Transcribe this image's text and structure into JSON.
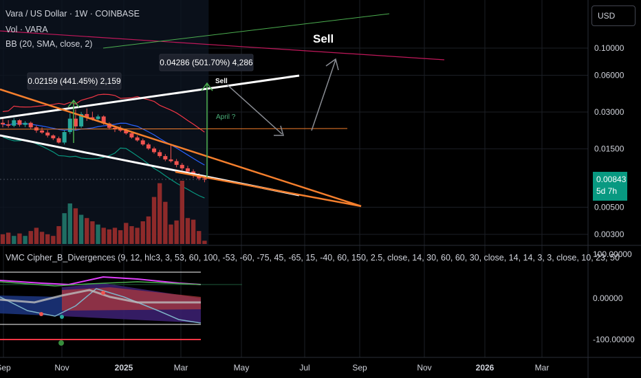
{
  "header": {
    "title": "Vara / US Dollar · 1W · COINBASE",
    "volume": "Vol · VARA",
    "bb": "BB (20, SMA, close, 2)",
    "currency": "USD"
  },
  "last_price": {
    "value": "0.00843",
    "countdown": "5d 7h"
  },
  "oscillator": {
    "label": "VMC Cipher_B_Divergences (9, 12, hlc3, 3, 53, 60, 100, -53, -60, -75, 45, -65, 15, -40, 60, 150, 2.5, close, 14, 30, 60, 60, 30, close, 14, 14, 3, 3, close, 10, 23, 50",
    "ticks": [
      "100.00000",
      "0.00000",
      "-100.00000"
    ]
  },
  "annotations": {
    "sell_big": "Sell",
    "sell_small": "Sell",
    "april": "April ?",
    "measure1": "0.02159 (441.45%) 2,159",
    "measure2": "0.04286 (501.70%) 4,286"
  },
  "colors": {
    "up": "#26a69a",
    "down": "#ef5350",
    "up_volume": "#1f6e63",
    "down_volume": "#8e2a2a",
    "last_price": "#089981",
    "trendline_white": "#ffffff",
    "trendline_orange": "#f57f2d",
    "bb_basis": "#2962ff",
    "bb_upper": "#f23645",
    "bb_lower": "#089981"
  },
  "chart_data": {
    "type": "candlestick",
    "symbol": "VARA/USD",
    "interval": "1W",
    "scale": "log",
    "ylim": [
      0.0026,
      0.2
    ],
    "y_ticks": [
      0.1,
      0.06,
      0.03,
      0.015,
      0.005,
      0.003
    ],
    "x_ticks": [
      "Sep",
      "Nov",
      "2025",
      "Mar",
      "May",
      "Jul",
      "Sep",
      "Nov",
      "2026",
      "Mar"
    ],
    "candles": [
      {
        "o": 0.0245,
        "h": 0.0265,
        "l": 0.0225,
        "c": 0.0238
      },
      {
        "o": 0.0238,
        "h": 0.0258,
        "l": 0.0224,
        "c": 0.0232
      },
      {
        "o": 0.0232,
        "h": 0.0268,
        "l": 0.0226,
        "c": 0.0257
      },
      {
        "o": 0.0257,
        "h": 0.0262,
        "l": 0.0228,
        "c": 0.0236
      },
      {
        "o": 0.0236,
        "h": 0.0253,
        "l": 0.0226,
        "c": 0.0245
      },
      {
        "o": 0.0245,
        "h": 0.0251,
        "l": 0.0219,
        "c": 0.0225
      },
      {
        "o": 0.0225,
        "h": 0.0233,
        "l": 0.0203,
        "c": 0.0212
      },
      {
        "o": 0.0212,
        "h": 0.0225,
        "l": 0.0199,
        "c": 0.0204
      },
      {
        "o": 0.0204,
        "h": 0.0214,
        "l": 0.0186,
        "c": 0.0193
      },
      {
        "o": 0.0193,
        "h": 0.0197,
        "l": 0.0177,
        "c": 0.0183
      },
      {
        "o": 0.0183,
        "h": 0.0189,
        "l": 0.0166,
        "c": 0.0169
      },
      {
        "o": 0.0169,
        "h": 0.0215,
        "l": 0.0163,
        "c": 0.0206
      },
      {
        "o": 0.0206,
        "h": 0.0293,
        "l": 0.0198,
        "c": 0.0265
      },
      {
        "o": 0.0265,
        "h": 0.0316,
        "l": 0.0212,
        "c": 0.0229
      },
      {
        "o": 0.0229,
        "h": 0.0301,
        "l": 0.0222,
        "c": 0.0289
      },
      {
        "o": 0.0289,
        "h": 0.0321,
        "l": 0.0254,
        "c": 0.0272
      },
      {
        "o": 0.0272,
        "h": 0.0302,
        "l": 0.0256,
        "c": 0.0263
      },
      {
        "o": 0.0263,
        "h": 0.0286,
        "l": 0.0251,
        "c": 0.0276
      },
      {
        "o": 0.0276,
        "h": 0.0282,
        "l": 0.0236,
        "c": 0.0242
      },
      {
        "o": 0.0242,
        "h": 0.0248,
        "l": 0.0216,
        "c": 0.0223
      },
      {
        "o": 0.0223,
        "h": 0.0233,
        "l": 0.0206,
        "c": 0.0217
      },
      {
        "o": 0.0217,
        "h": 0.0232,
        "l": 0.0206,
        "c": 0.0212
      },
      {
        "o": 0.0212,
        "h": 0.0218,
        "l": 0.0196,
        "c": 0.0201
      },
      {
        "o": 0.0201,
        "h": 0.0207,
        "l": 0.0182,
        "c": 0.0186
      },
      {
        "o": 0.0186,
        "h": 0.0193,
        "l": 0.0172,
        "c": 0.0176
      },
      {
        "o": 0.0176,
        "h": 0.0182,
        "l": 0.0159,
        "c": 0.0163
      },
      {
        "o": 0.0163,
        "h": 0.0168,
        "l": 0.0147,
        "c": 0.0151
      },
      {
        "o": 0.0151,
        "h": 0.0156,
        "l": 0.0137,
        "c": 0.0141
      },
      {
        "o": 0.0141,
        "h": 0.0147,
        "l": 0.0127,
        "c": 0.0131
      },
      {
        "o": 0.0131,
        "h": 0.0136,
        "l": 0.0119,
        "c": 0.0123
      },
      {
        "o": 0.0123,
        "h": 0.0162,
        "l": 0.0116,
        "c": 0.0119
      },
      {
        "o": 0.0119,
        "h": 0.0124,
        "l": 0.0106,
        "c": 0.0111
      },
      {
        "o": 0.0111,
        "h": 0.0115,
        "l": 0.01,
        "c": 0.0104
      },
      {
        "o": 0.0104,
        "h": 0.0109,
        "l": 0.0094,
        "c": 0.0098
      },
      {
        "o": 0.0098,
        "h": 0.0102,
        "l": 0.0087,
        "c": 0.0091
      },
      {
        "o": 0.0091,
        "h": 0.0095,
        "l": 0.0083,
        "c": 0.0086
      },
      {
        "o": 0.0086,
        "h": 0.0091,
        "l": 0.008,
        "c": 0.0084
      }
    ],
    "volumes": [
      1.2,
      1.4,
      1.0,
      1.3,
      1.0,
      1.6,
      2.0,
      1.5,
      1.2,
      1.0,
      2.2,
      3.8,
      5.0,
      4.4,
      3.6,
      3.2,
      2.8,
      2.4,
      2.0,
      1.8,
      2.0,
      1.7,
      2.6,
      2.2,
      2.0,
      2.8,
      3.4,
      5.8,
      7.5,
      5.2,
      2.4,
      2.9,
      7.8,
      3.2,
      3.0,
      1.6,
      0.4
    ],
    "oscillator_ticks": [
      100,
      0,
      -100
    ]
  }
}
